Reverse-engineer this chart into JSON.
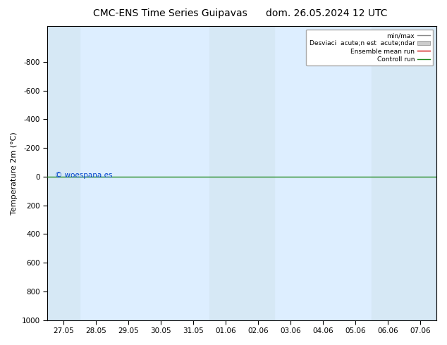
{
  "title_left": "CMC-ENS Time Series Guipavas",
  "title_right": "dom. 26.05.2024 12 UTC",
  "ylabel": "Temperature 2m (°C)",
  "ylim_bottom": 1000,
  "ylim_top": -1050,
  "yticks": [
    -800,
    -600,
    -400,
    -200,
    0,
    200,
    400,
    600,
    800,
    1000
  ],
  "xtick_labels": [
    "27.05",
    "28.05",
    "29.05",
    "30.05",
    "31.05",
    "01.06",
    "02.06",
    "03.06",
    "04.06",
    "05.06",
    "06.06",
    "07.06"
  ],
  "xtick_positions": [
    0,
    1,
    2,
    3,
    4,
    5,
    6,
    7,
    8,
    9,
    10,
    11
  ],
  "shaded_columns_idx": [
    0,
    5,
    6,
    10,
    11
  ],
  "shaded_color": "#d6e8f5",
  "green_line_y": 0,
  "green_line_color": "#228B22",
  "red_line_color": "#cc0000",
  "fig_bg_color": "#ffffff",
  "plot_bg_color": "#ddeeff",
  "watermark": "© woespana.es",
  "legend_min_max_color": "#888888",
  "legend_std_color": "#cccccc",
  "legend_ensemble_color": "#cc0000",
  "legend_control_color": "#228B22",
  "title_fontsize": 10,
  "tick_fontsize": 7.5,
  "ylabel_fontsize": 8
}
